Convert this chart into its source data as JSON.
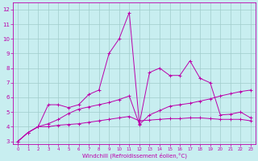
{
  "xlabel": "Windchill (Refroidissement éolien,°C)",
  "bg_color": "#c8eef0",
  "grid_color": "#a0cccc",
  "line_color": "#bb00aa",
  "x_ticks": [
    0,
    1,
    2,
    3,
    4,
    5,
    6,
    7,
    8,
    9,
    10,
    11,
    12,
    13,
    14,
    15,
    16,
    17,
    18,
    19,
    20,
    21,
    22,
    23
  ],
  "ylim": [
    2.8,
    12.5
  ],
  "xlim": [
    -0.5,
    23.5
  ],
  "yticks": [
    3,
    4,
    5,
    6,
    7,
    8,
    9,
    10,
    11,
    12
  ],
  "series1_x": [
    0,
    1,
    2,
    3,
    4,
    5,
    6,
    7,
    8,
    9,
    10,
    11,
    12,
    13,
    14,
    15,
    16,
    17,
    18,
    19,
    20,
    21,
    22,
    23
  ],
  "series1_y": [
    3.0,
    3.6,
    4.0,
    4.0,
    4.1,
    4.15,
    4.2,
    4.3,
    4.4,
    4.5,
    4.6,
    4.7,
    4.4,
    4.45,
    4.5,
    4.55,
    4.55,
    4.6,
    4.6,
    4.55,
    4.5,
    4.5,
    4.5,
    4.4
  ],
  "series2_x": [
    0,
    1,
    2,
    3,
    4,
    5,
    6,
    7,
    8,
    9,
    10,
    11,
    12,
    13,
    14,
    15,
    16,
    17,
    18,
    19,
    20,
    21,
    22,
    23
  ],
  "series2_y": [
    3.0,
    3.6,
    4.0,
    4.2,
    4.5,
    4.9,
    5.2,
    5.35,
    5.5,
    5.65,
    5.85,
    6.1,
    4.15,
    4.8,
    5.1,
    5.4,
    5.5,
    5.6,
    5.75,
    5.9,
    6.1,
    6.25,
    6.4,
    6.5
  ],
  "series3_x": [
    0,
    1,
    2,
    3,
    4,
    5,
    6,
    7,
    8,
    9,
    10,
    11,
    12,
    13,
    14,
    15,
    16,
    17,
    18,
    19,
    20,
    21,
    22,
    23
  ],
  "series3_y": [
    3.0,
    3.6,
    4.0,
    5.5,
    5.5,
    5.3,
    5.5,
    6.2,
    6.5,
    9.0,
    10.0,
    11.8,
    4.2,
    7.7,
    8.0,
    7.5,
    7.5,
    8.5,
    7.3,
    7.0,
    4.8,
    4.85,
    5.0,
    4.6
  ]
}
